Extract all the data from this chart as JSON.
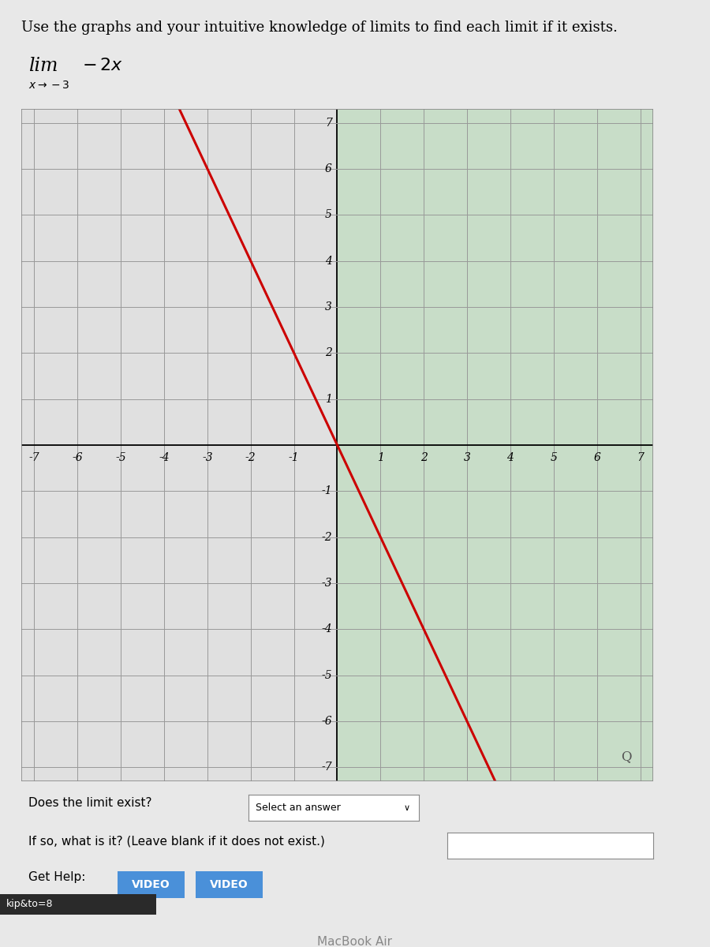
{
  "title": "Use the graphs and your intuitive knowledge of limits to find each limit if it exists.",
  "x_min": -7,
  "x_max": 7,
  "y_min": -7,
  "y_max": 7,
  "line_color": "#cc0000",
  "line_width": 2.2,
  "grid_color": "#bbbbbb",
  "bg_color_left": "#e8e8e8",
  "bg_color_right": "#c8ddc8",
  "page_bg": "#e8e8e8",
  "graph_border_color": "#888888",
  "video_btn_color": "#4a90d9",
  "kip_text": "kip&to=8",
  "macbook_text": "MacBook Air"
}
